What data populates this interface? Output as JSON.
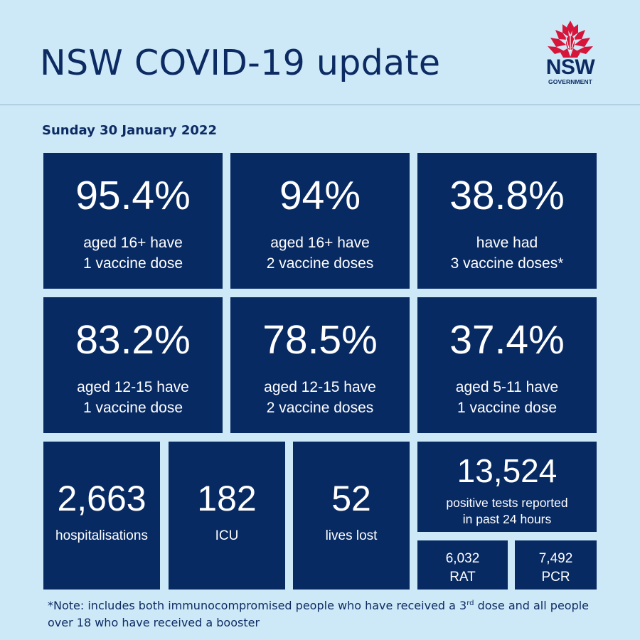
{
  "header": {
    "title": "NSW COVID-19 update",
    "logo_text": "NSW",
    "logo_subtext": "GOVERNMENT",
    "logo_icon": "waratah-flower-icon"
  },
  "date": "Sunday 30 January 2022",
  "vaccination": [
    {
      "value": "95.4%",
      "line1": "aged 16+ have",
      "line2": "1 vaccine dose"
    },
    {
      "value": "94%",
      "line1": "aged 16+ have",
      "line2": "2 vaccine doses"
    },
    {
      "value": "38.8%",
      "line1": "have had",
      "line2": "3 vaccine doses*"
    },
    {
      "value": "83.2%",
      "line1": "aged 12-15 have",
      "line2": "1 vaccine dose"
    },
    {
      "value": "78.5%",
      "line1": "aged 12-15 have",
      "line2": "2 vaccine doses"
    },
    {
      "value": "37.4%",
      "line1": "aged 5-11 have",
      "line2": "1 vaccine dose"
    }
  ],
  "stats": {
    "hospitalisations": {
      "value": "2,663",
      "label": "hospitalisations"
    },
    "icu": {
      "value": "182",
      "label": "ICU"
    },
    "deaths": {
      "value": "52",
      "label": "lives lost"
    }
  },
  "tests": {
    "positive": {
      "value": "13,524",
      "line1": "positive tests reported",
      "line2": "in past 24 hours"
    },
    "rat": {
      "value": "6,032",
      "label": "RAT"
    },
    "pcr": {
      "value": "7,492",
      "label": "PCR"
    }
  },
  "note": {
    "part1": "*Note: includes both immunocompromised people who have received a 3",
    "sup": "rd",
    "part2": " dose and all people over 18 who have received a booster"
  },
  "colors": {
    "background": "#cde9f8",
    "tile": "#082a63",
    "text_dark": "#0d2b63",
    "waratah_red": "#d7153a"
  }
}
